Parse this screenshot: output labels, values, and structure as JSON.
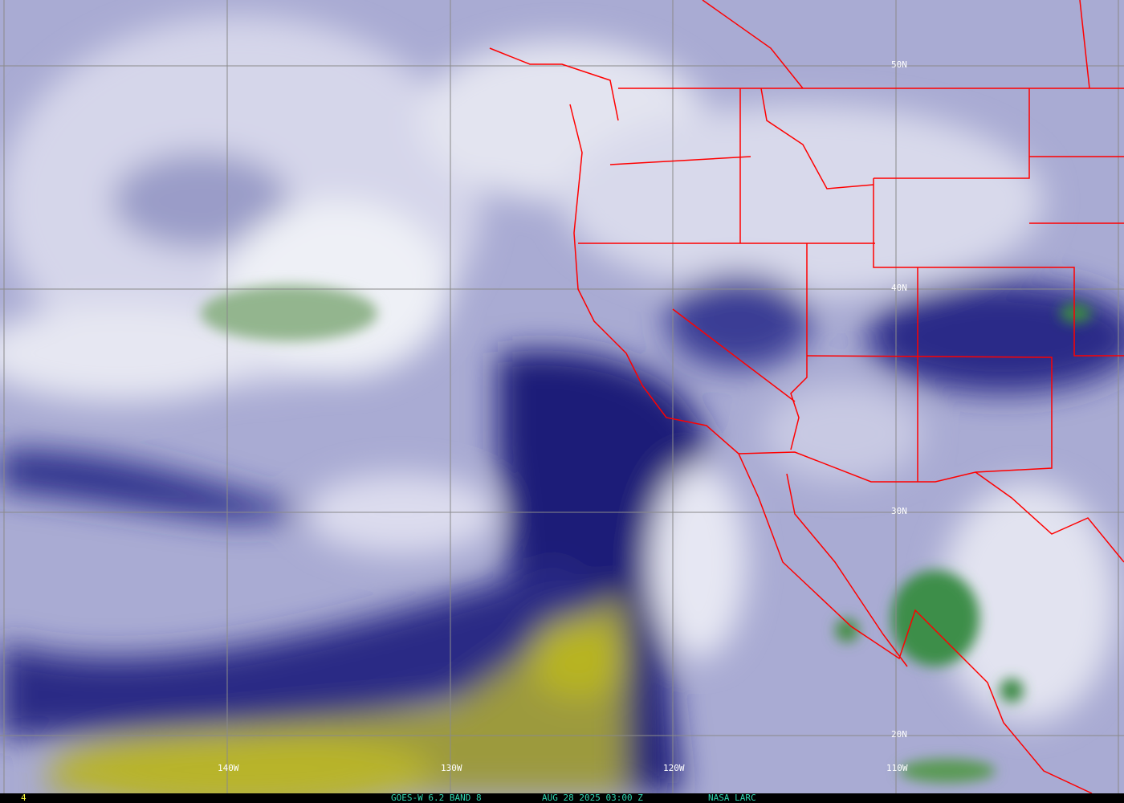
{
  "image": {
    "type": "water vapor satellite image",
    "colors": {
      "background": "#a9abd3",
      "dry": "#15166e",
      "very_dry": "#b9b420",
      "moist": "#f2f2f8",
      "cold_tops": "#3f8a48",
      "borders": "#ff0000",
      "grid": "#8a8a8a"
    }
  },
  "grid_labels": {
    "lat": [
      "50N",
      "40N",
      "30N",
      "20N"
    ],
    "lon": [
      "140W",
      "130W",
      "120W",
      "110W"
    ]
  },
  "footer": {
    "frame": "4",
    "satellite": "GOES-W 6.2 BAND 8",
    "datetime": "AUG 28 2025 03:00 Z",
    "source": "NASA LARC"
  }
}
